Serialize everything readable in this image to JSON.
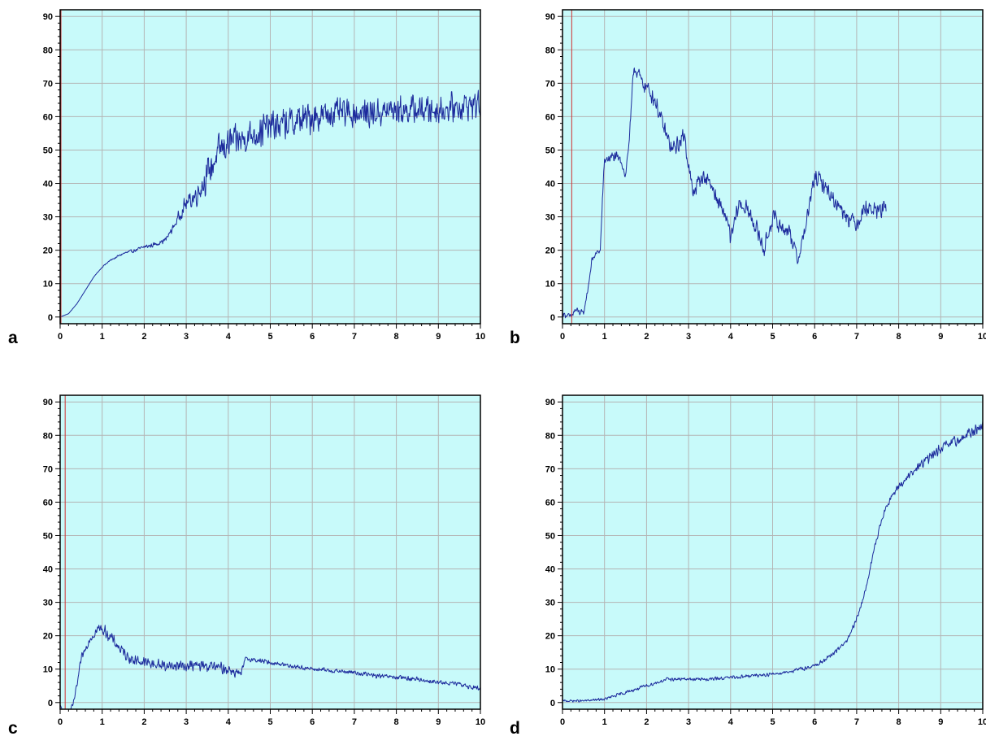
{
  "colors": {
    "plot_bg": "#c8fafa",
    "grid": "#b4b4b4",
    "series": "#1c2a9c",
    "marker": "#d03030",
    "frame": "#000000"
  },
  "chart_data": [
    {
      "type": "line",
      "panel_label": "a",
      "title": "",
      "xlabel": "",
      "ylabel": "",
      "xlim": [
        0,
        10
      ],
      "ylim": [
        -2,
        92
      ],
      "x_ticks": [
        "0",
        "1",
        "2",
        "3",
        "4",
        "5",
        "6",
        "7",
        "8",
        "9",
        "10"
      ],
      "y_ticks": [
        "0",
        "10",
        "20",
        "30",
        "40",
        "50",
        "60",
        "70",
        "80",
        "90"
      ],
      "grid": true,
      "legend": "none",
      "marker_x": 0.0,
      "series": [
        {
          "x": [
            0,
            0.2,
            0.4,
            0.6,
            0.8,
            1.0,
            1.2,
            1.5,
            1.8,
            2.0,
            2.2,
            2.5,
            2.7,
            2.9,
            3.0,
            3.2,
            3.4,
            3.6,
            3.8,
            4.0,
            4.3,
            4.6,
            5.0,
            5.5,
            6.0,
            6.5,
            7.0,
            7.5,
            8.0,
            8.5,
            9.0,
            9.5,
            10.0
          ],
          "y": [
            0,
            1,
            4,
            8,
            12,
            15,
            17,
            19,
            20,
            21,
            21.5,
            23,
            27,
            32,
            34,
            36,
            40,
            45,
            50,
            52,
            53,
            55,
            57,
            58,
            60,
            61,
            61,
            61,
            62,
            62,
            62,
            63,
            64
          ],
          "noise": [
            0,
            0,
            0,
            0,
            0,
            0.3,
            0.4,
            0.5,
            0.6,
            0.7,
            0.8,
            1,
            1.5,
            2.5,
            3,
            4,
            5,
            6,
            6,
            6,
            5,
            6,
            6,
            6,
            6,
            5,
            5,
            5,
            5,
            5,
            5,
            5,
            5
          ]
        }
      ]
    },
    {
      "type": "line",
      "panel_label": "b",
      "title": "",
      "xlabel": "",
      "ylabel": "",
      "xlim": [
        0,
        10
      ],
      "ylim": [
        -2,
        92
      ],
      "x_ticks": [
        "0",
        "1",
        "2",
        "3",
        "4",
        "5",
        "6",
        "7",
        "8",
        "9",
        "10"
      ],
      "y_ticks": [
        "0",
        "10",
        "20",
        "30",
        "40",
        "50",
        "60",
        "70",
        "80",
        "90"
      ],
      "grid": true,
      "legend": "none",
      "marker_x": 0.2,
      "series": [
        {
          "x": [
            0,
            0.2,
            0.3,
            0.5,
            0.6,
            0.7,
            0.8,
            0.9,
            0.95,
            1.0,
            1.2,
            1.4,
            1.5,
            1.6,
            1.7,
            1.8,
            1.9,
            2.0,
            2.2,
            2.4,
            2.6,
            2.8,
            2.9,
            3.0,
            3.1,
            3.3,
            3.5,
            3.7,
            3.9,
            4.0,
            4.2,
            4.4,
            4.6,
            4.8,
            5.0,
            5.2,
            5.4,
            5.6,
            5.8,
            6.0,
            6.2,
            6.4,
            6.6,
            6.8,
            7.0,
            7.2,
            7.4,
            7.7
          ],
          "y": [
            1,
            0,
            2,
            1,
            8,
            17,
            19,
            20,
            35,
            47,
            48,
            47,
            42,
            55,
            75,
            73,
            70,
            69,
            65,
            57,
            50,
            52,
            55,
            45,
            37,
            42,
            41,
            34,
            30,
            23,
            34,
            32,
            27,
            20,
            30,
            27,
            26,
            17,
            28,
            42,
            40,
            36,
            33,
            30,
            28,
            33,
            32,
            32
          ],
          "noise": [
            1,
            1,
            1.5,
            1,
            1,
            1,
            1,
            1,
            2,
            1.5,
            2,
            2,
            2,
            2,
            2.5,
            2.5,
            2.5,
            2.5,
            3,
            3,
            3,
            3,
            3,
            3,
            3,
            3,
            3,
            3,
            3,
            3,
            3,
            3,
            3,
            3,
            3,
            3,
            3,
            2.5,
            3,
            3,
            3,
            3,
            3,
            3,
            3,
            3,
            3,
            3
          ]
        }
      ]
    },
    {
      "type": "line",
      "panel_label": "c",
      "title": "",
      "xlabel": "",
      "ylabel": "",
      "xlim": [
        0,
        10
      ],
      "ylim": [
        -2,
        92
      ],
      "x_ticks": [
        "0",
        "1",
        "2",
        "3",
        "4",
        "5",
        "6",
        "7",
        "8",
        "9",
        "10"
      ],
      "y_ticks": [
        "0",
        "10",
        "20",
        "30",
        "40",
        "50",
        "60",
        "70",
        "80",
        "90"
      ],
      "grid": true,
      "legend": "none",
      "marker_x": 0.1,
      "series": [
        {
          "x": [
            0,
            0.1,
            0.2,
            0.3,
            0.4,
            0.5,
            0.7,
            0.9,
            1.0,
            1.1,
            1.3,
            1.5,
            1.7,
            2.0,
            2.5,
            3.0,
            3.5,
            4.0,
            4.2,
            4.3,
            4.4,
            4.5,
            5.0,
            5.5,
            6.0,
            6.5,
            7.0,
            7.5,
            8.0,
            8.5,
            9.0,
            9.5,
            10.0
          ],
          "y": [
            -1,
            -3,
            -3,
            -1,
            5,
            13,
            19,
            22,
            22,
            21,
            18,
            15,
            13,
            12,
            11,
            11,
            11,
            10,
            9,
            8,
            13,
            13,
            12,
            11,
            10,
            9.5,
            9,
            8,
            7.5,
            7,
            6,
            5.5,
            4
          ],
          "noise": [
            0.5,
            0.5,
            0.5,
            1,
            1,
            1.5,
            1.5,
            2,
            2,
            2,
            2,
            2,
            2,
            2,
            2,
            2,
            2,
            2,
            2,
            1.5,
            0.8,
            0.8,
            0.8,
            0.8,
            0.8,
            0.8,
            0.8,
            0.8,
            0.8,
            0.8,
            0.8,
            0.8,
            0.8
          ]
        }
      ]
    },
    {
      "type": "line",
      "panel_label": "d",
      "title": "",
      "xlabel": "",
      "ylabel": "",
      "xlim": [
        0,
        10
      ],
      "ylim": [
        -2,
        92
      ],
      "x_ticks": [
        "0",
        "1",
        "2",
        "3",
        "4",
        "5",
        "6",
        "7",
        "8",
        "9",
        "10"
      ],
      "y_ticks": [
        "0",
        "10",
        "20",
        "30",
        "40",
        "50",
        "60",
        "70",
        "80",
        "90"
      ],
      "grid": true,
      "legend": "none",
      "marker_x": null,
      "series": [
        {
          "x": [
            0,
            0.5,
            1.0,
            1.5,
            2.0,
            2.5,
            3.0,
            3.5,
            4.0,
            4.5,
            5.0,
            5.5,
            6.0,
            6.4,
            6.8,
            7.0,
            7.2,
            7.4,
            7.6,
            7.8,
            8.0,
            8.2,
            8.5,
            9.0,
            9.5,
            10.0
          ],
          "y": [
            0.5,
            0.5,
            1,
            3,
            5,
            7,
            7,
            7,
            7.5,
            8,
            8.5,
            9.5,
            11,
            14,
            19,
            25,
            33,
            45,
            55,
            61,
            65,
            67,
            71,
            76,
            79,
            83
          ],
          "noise": [
            0.4,
            0.4,
            0.5,
            0.6,
            0.6,
            0.6,
            0.6,
            0.6,
            0.6,
            0.6,
            0.6,
            0.7,
            0.8,
            0.8,
            0.8,
            1,
            1,
            1,
            1,
            1,
            1.2,
            1.5,
            1.5,
            1.8,
            2,
            2
          ]
        }
      ]
    }
  ]
}
